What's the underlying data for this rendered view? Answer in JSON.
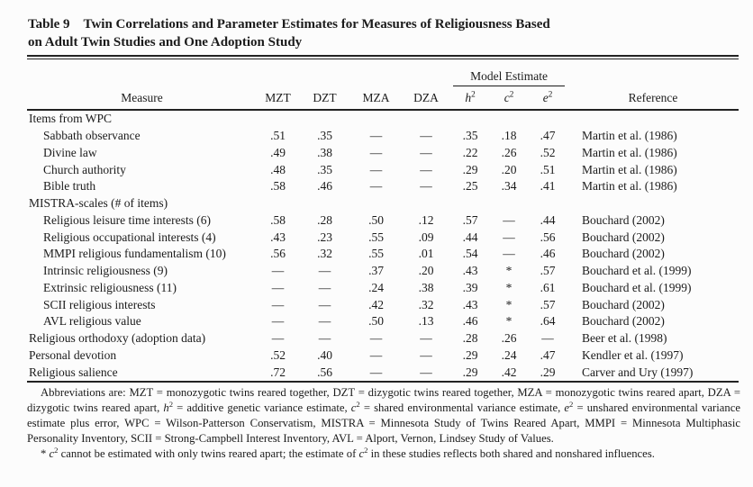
{
  "title": {
    "label": "Table 9",
    "line1": "Twin Correlations and Parameter Estimates for Measures of Religiousness Based",
    "line2": "on Adult Twin Studies and One Adoption Study"
  },
  "table": {
    "spanner_label": "Model Estimate",
    "measure_header": "Measure",
    "twin_headers": [
      "MZT",
      "DZT",
      "MZA",
      "DZA"
    ],
    "model_headers": [
      {
        "base": "h",
        "sup": "2"
      },
      {
        "base": "c",
        "sup": "2"
      },
      {
        "base": "e",
        "sup": "2"
      }
    ],
    "reference_header": "Reference",
    "value_col_names": [
      "mzt",
      "dzt",
      "mza",
      "dza",
      "h2",
      "c2",
      "e2"
    ],
    "rows": [
      {
        "label": "Items from WPC",
        "indent": 0,
        "section": true,
        "values": [
          "",
          "",
          "",
          "",
          "",
          "",
          ""
        ],
        "reference": ""
      },
      {
        "label": "Sabbath observance",
        "indent": 1,
        "section": false,
        "values": [
          ".51",
          ".35",
          "—",
          "—",
          ".35",
          ".18",
          ".47"
        ],
        "reference": "Martin et al. (1986)"
      },
      {
        "label": "Divine law",
        "indent": 1,
        "section": false,
        "values": [
          ".49",
          ".38",
          "—",
          "—",
          ".22",
          ".26",
          ".52"
        ],
        "reference": "Martin et al. (1986)"
      },
      {
        "label": "Church authority",
        "indent": 1,
        "section": false,
        "values": [
          ".48",
          ".35",
          "—",
          "—",
          ".29",
          ".20",
          ".51"
        ],
        "reference": "Martin et al. (1986)"
      },
      {
        "label": "Bible truth",
        "indent": 1,
        "section": false,
        "values": [
          ".58",
          ".46",
          "—",
          "—",
          ".25",
          ".34",
          ".41"
        ],
        "reference": "Martin et al. (1986)"
      },
      {
        "label": "MISTRA-scales (# of items)",
        "indent": 0,
        "section": true,
        "values": [
          "",
          "",
          "",
          "",
          "",
          "",
          ""
        ],
        "reference": ""
      },
      {
        "label": "Religious leisure time interests (6)",
        "indent": 1,
        "section": false,
        "values": [
          ".58",
          ".28",
          ".50",
          ".12",
          ".57",
          "—",
          ".44"
        ],
        "reference": "Bouchard (2002)"
      },
      {
        "label": "Religious occupational interests (4)",
        "indent": 1,
        "section": false,
        "values": [
          ".43",
          ".23",
          ".55",
          ".09",
          ".44",
          "—",
          ".56"
        ],
        "reference": "Bouchard (2002)"
      },
      {
        "label": "MMPI religious fundamentalism (10)",
        "indent": 1,
        "section": false,
        "values": [
          ".56",
          ".32",
          ".55",
          ".01",
          ".54",
          "—",
          ".46"
        ],
        "reference": "Bouchard (2002)"
      },
      {
        "label": "Intrinsic religiousness (9)",
        "indent": 1,
        "section": false,
        "values": [
          "—",
          "—",
          ".37",
          ".20",
          ".43",
          "*",
          ".57"
        ],
        "reference": "Bouchard et al. (1999)"
      },
      {
        "label": "Extrinsic religiousness (11)",
        "indent": 1,
        "section": false,
        "values": [
          "—",
          "—",
          ".24",
          ".38",
          ".39",
          "*",
          ".61"
        ],
        "reference": "Bouchard et al. (1999)"
      },
      {
        "label": "SCII religious interests",
        "indent": 1,
        "section": false,
        "values": [
          "—",
          "—",
          ".42",
          ".32",
          ".43",
          "*",
          ".57"
        ],
        "reference": "Bouchard (2002)"
      },
      {
        "label": "AVL religious value",
        "indent": 1,
        "section": false,
        "values": [
          "—",
          "—",
          ".50",
          ".13",
          ".46",
          "*",
          ".64"
        ],
        "reference": "Bouchard (2002)"
      },
      {
        "label": "Religious orthodoxy (adoption data)",
        "indent": 0,
        "section": false,
        "values": [
          "—",
          "—",
          "—",
          "—",
          ".28",
          ".26",
          "—"
        ],
        "reference": "Beer et al. (1998)"
      },
      {
        "label": "Personal devotion",
        "indent": 0,
        "section": false,
        "values": [
          ".52",
          ".40",
          "—",
          "—",
          ".29",
          ".24",
          ".47"
        ],
        "reference": "Kendler et al. (1997)"
      },
      {
        "label": "Religious salience",
        "indent": 0,
        "section": false,
        "values": [
          ".72",
          ".56",
          "—",
          "—",
          ".29",
          ".42",
          ".29"
        ],
        "reference": "Carver and Ury (1997)"
      }
    ]
  },
  "footnotes": [
    {
      "name": "abbreviations",
      "segments": [
        {
          "t": "Abbreviations are: MZT = monozygotic twins reared together, DZT = dizygotic twins reared together, MZA = monozygotic twins reared apart, DZA = dizygotic twins reared apart, "
        },
        {
          "t": "h",
          "i": true
        },
        {
          "t": "2",
          "sup": true
        },
        {
          "t": " = additive genetic variance estimate, "
        },
        {
          "t": "c",
          "i": true
        },
        {
          "t": "2",
          "sup": true
        },
        {
          "t": " = shared environmental variance estimate, "
        },
        {
          "t": "e",
          "i": true
        },
        {
          "t": "2",
          "sup": true
        },
        {
          "t": " = unshared environmental variance estimate plus error, WPC = Wilson-Patterson Conservatism, MISTRA = Minnesota Study of Twins Reared Apart, MMPI = Minnesota Multiphasic Personality Inventory, SCII = Strong-Campbell Interest Inventory, AVL = Alport, Vernon, Lindsey Study of Values."
        }
      ]
    },
    {
      "name": "asterisk",
      "segments": [
        {
          "t": "* "
        },
        {
          "t": "c",
          "i": true
        },
        {
          "t": "2",
          "sup": true
        },
        {
          "t": " cannot be estimated with only twins reared apart; the estimate of "
        },
        {
          "t": "c",
          "i": true
        },
        {
          "t": "2",
          "sup": true
        },
        {
          "t": " in these studies reflects both shared and nonshared influences."
        }
      ]
    }
  ]
}
